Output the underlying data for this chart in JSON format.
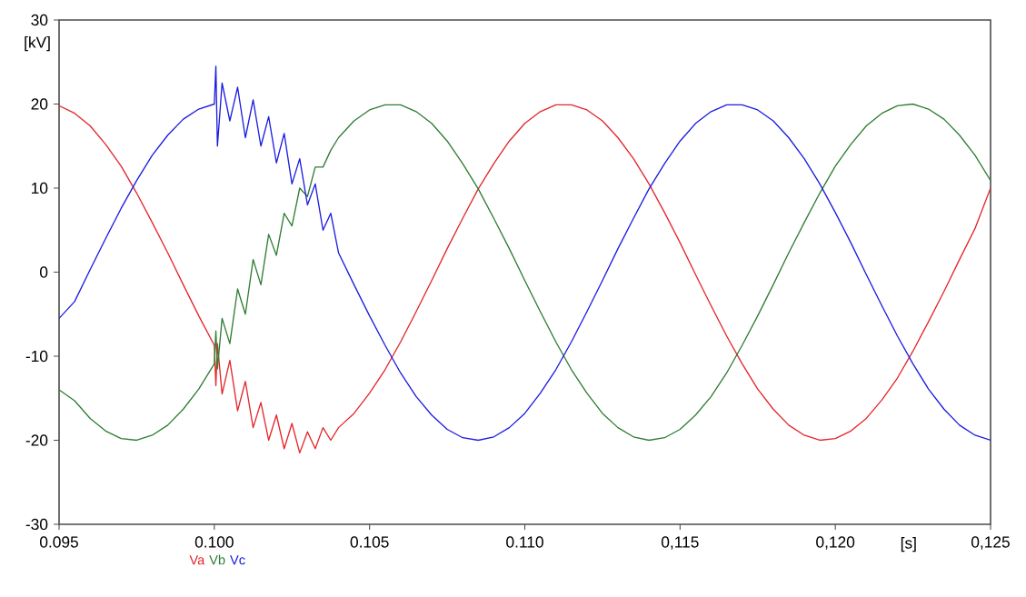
{
  "chart_data": {
    "type": "line",
    "xlabel": "[s]",
    "ylabel": "[kV]",
    "xlim": [
      0.095,
      0.125
    ],
    "ylim": [
      -30,
      30
    ],
    "xticks": [
      {
        "value": 0.095,
        "label": "0.095"
      },
      {
        "value": 0.1,
        "label": "0.100"
      },
      {
        "value": 0.105,
        "label": "0.105"
      },
      {
        "value": 0.11,
        "label": "0.110"
      },
      {
        "value": 0.115,
        "label": "0,115"
      },
      {
        "value": 0.12,
        "label": "0,120"
      },
      {
        "value": 0.125,
        "label": "0,125"
      }
    ],
    "yticks": [
      -30,
      -20,
      -10,
      0,
      10,
      20,
      30
    ],
    "grid": false,
    "marker": "none",
    "line_style": "solid",
    "x": [
      0.095,
      0.0955,
      0.096,
      0.0965,
      0.097,
      0.0975,
      0.098,
      0.0985,
      0.099,
      0.0995,
      0.1,
      0.10005,
      0.1001,
      0.10025,
      0.1005,
      0.10075,
      0.101,
      0.10125,
      0.1015,
      0.10175,
      0.102,
      0.10225,
      0.1025,
      0.10275,
      0.103,
      0.10325,
      0.1035,
      0.10375,
      0.104,
      0.1045,
      0.105,
      0.1055,
      0.106,
      0.1065,
      0.107,
      0.1075,
      0.108,
      0.1085,
      0.109,
      0.1095,
      0.11,
      0.1105,
      0.111,
      0.1115,
      0.112,
      0.1125,
      0.113,
      0.1135,
      0.114,
      0.1145,
      0.115,
      0.1155,
      0.116,
      0.1165,
      0.117,
      0.1175,
      0.118,
      0.1185,
      0.119,
      0.1195,
      0.12,
      0.1205,
      0.121,
      0.1215,
      0.122,
      0.1225,
      0.123,
      0.1235,
      0.124,
      0.1245,
      0.125
    ],
    "series": [
      {
        "name": "Va",
        "color": "#e3262b",
        "values": [
          19.8,
          18.9,
          17.4,
          15.2,
          12.6,
          9.4,
          5.9,
          2.3,
          -1.5,
          -5.2,
          -8.7,
          -13.5,
          -8.5,
          -14.5,
          -10.5,
          -16.5,
          -13.0,
          -18.5,
          -15.5,
          -20.0,
          -17.0,
          -21.0,
          -18.0,
          -21.5,
          -19.0,
          -21.0,
          -18.5,
          -20.0,
          -18.5,
          -16.8,
          -14.4,
          -11.6,
          -8.3,
          -4.7,
          -1.0,
          2.8,
          6.4,
          9.9,
          12.9,
          15.6,
          17.7,
          19.1,
          19.9,
          19.9,
          19.3,
          18.0,
          16.0,
          13.5,
          10.5,
          7.1,
          3.5,
          -0.3,
          -4.0,
          -7.6,
          -10.9,
          -13.9,
          -16.3,
          -18.2,
          -19.4,
          -20.0,
          -19.8,
          -18.9,
          -17.4,
          -15.2,
          -12.6,
          -9.4,
          -5.9,
          -2.3,
          1.5,
          5.2,
          10.0
        ]
      },
      {
        "name": "Vb",
        "color": "#2f7d32",
        "values": [
          -14.0,
          -15.3,
          -17.4,
          -18.9,
          -19.8,
          -20.0,
          -19.4,
          -18.2,
          -16.3,
          -13.9,
          -10.9,
          -7.0,
          -11.5,
          -5.5,
          -8.5,
          -2.0,
          -5.0,
          1.5,
          -1.5,
          4.5,
          2.0,
          7.0,
          5.5,
          10.0,
          9.0,
          12.5,
          12.5,
          14.5,
          16.0,
          18.0,
          19.3,
          19.9,
          19.9,
          19.1,
          17.7,
          15.6,
          12.9,
          9.9,
          6.4,
          2.8,
          -1.0,
          -4.7,
          -8.3,
          -11.6,
          -14.4,
          -16.8,
          -18.5,
          -19.6,
          -20.0,
          -19.7,
          -18.7,
          -17.0,
          -14.8,
          -12.0,
          -8.7,
          -5.2,
          -1.5,
          2.3,
          5.9,
          9.4,
          12.6,
          15.2,
          17.4,
          18.9,
          19.8,
          20.0,
          19.4,
          18.2,
          16.3,
          13.9,
          10.9
        ]
      },
      {
        "name": "Vc",
        "color": "#1c1ce0",
        "values": [
          -5.5,
          -3.5,
          0.3,
          4.0,
          7.6,
          10.9,
          13.9,
          16.3,
          18.2,
          19.4,
          20.0,
          24.5,
          15.0,
          22.5,
          18.0,
          22.0,
          16.0,
          20.5,
          15.0,
          18.5,
          13.0,
          16.5,
          10.5,
          13.5,
          8.0,
          10.5,
          5.0,
          7.0,
          2.3,
          -1.5,
          -5.2,
          -8.7,
          -12.0,
          -14.8,
          -17.0,
          -18.7,
          -19.7,
          -20.0,
          -19.6,
          -18.5,
          -16.8,
          -14.4,
          -11.6,
          -8.3,
          -4.7,
          -1.0,
          2.8,
          6.4,
          9.9,
          12.9,
          15.6,
          17.7,
          19.1,
          19.9,
          19.9,
          19.3,
          18.0,
          16.0,
          13.5,
          10.5,
          7.1,
          3.5,
          -0.3,
          -4.0,
          -7.6,
          -10.9,
          -13.9,
          -16.3,
          -18.2,
          -19.4,
          -20.0
        ]
      }
    ]
  }
}
